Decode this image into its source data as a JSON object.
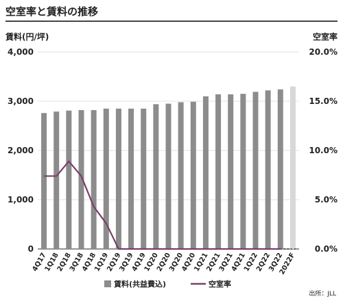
{
  "page": {
    "title": "空室率と賃料の推移",
    "source": "出所：JLL"
  },
  "chart_data": {
    "type": "bar",
    "title": "空室率と賃料の推移",
    "ylabel_left": "賃料(円/坪)",
    "ylabel_right": "空室率",
    "ylim_left": [
      0,
      4000
    ],
    "ylim_right": [
      0,
      20
    ],
    "yticks_left": [
      "0",
      "1,000",
      "2,000",
      "3,000",
      "4,000"
    ],
    "yticks_right": [
      "0.0%",
      "5.0%",
      "10.0%",
      "15.0%",
      "20.0%"
    ],
    "categories": [
      "4Q17",
      "1Q18",
      "2Q18",
      "3Q18",
      "4Q18",
      "1Q19",
      "2Q19",
      "3Q19",
      "4Q19",
      "1Q20",
      "2Q20",
      "3Q20",
      "4Q20",
      "1Q21",
      "2Q21",
      "3Q21",
      "4Q21",
      "1Q22",
      "2Q22",
      "3Q22",
      "2022F"
    ],
    "series": [
      {
        "name": "賃料(共益費込)",
        "kind": "bar",
        "axis": "left",
        "color": "#8c8c8c",
        "values": [
          2760,
          2790,
          2810,
          2820,
          2820,
          2850,
          2850,
          2850,
          2850,
          2940,
          2950,
          2980,
          2990,
          3100,
          3140,
          3140,
          3150,
          3190,
          3220,
          3240,
          3300
        ],
        "forecast_color": "#d8d8d8"
      },
      {
        "name": "空室率",
        "kind": "line",
        "axis": "right",
        "color": "#7a3f6b",
        "values": [
          7.4,
          7.4,
          8.9,
          7.4,
          4.3,
          2.6,
          0,
          0,
          0,
          0,
          0,
          0,
          0,
          0,
          0,
          0,
          0,
          0,
          0,
          0,
          null
        ],
        "forecast_values": [
          0,
          0
        ]
      }
    ],
    "legend": {
      "position": "bottom"
    },
    "grid": true
  }
}
